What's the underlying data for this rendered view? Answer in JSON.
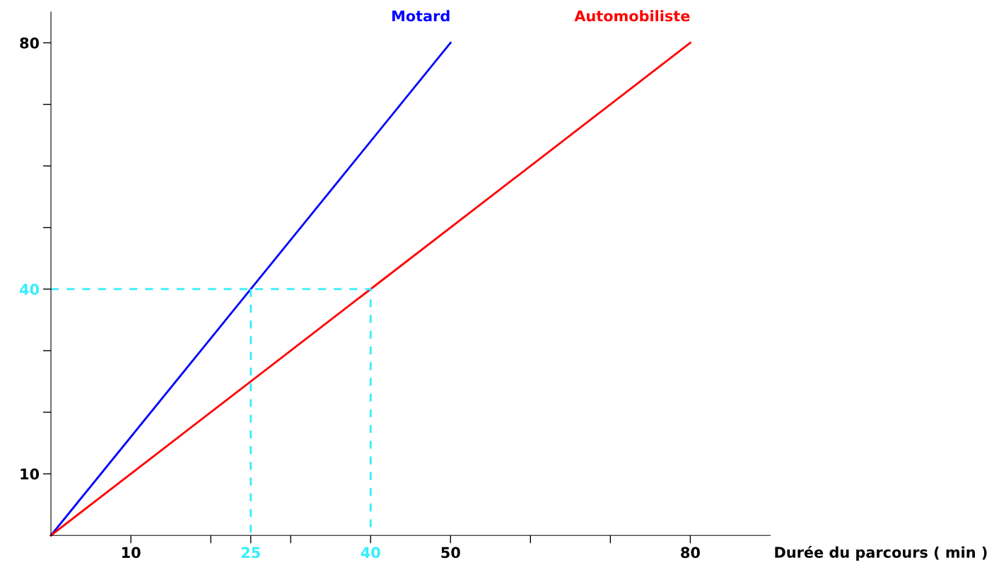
{
  "chart_data": {
    "type": "line",
    "xlabel": "Durée du parcours ( min )",
    "series": [
      {
        "name": "Motard",
        "color": "#0000ff",
        "x": [
          0,
          50
        ],
        "values": [
          0,
          80
        ]
      },
      {
        "name": "Automobiliste",
        "color": "#ff0000",
        "x": [
          0,
          80
        ],
        "values": [
          0,
          80
        ]
      },
      {
        "color": "#33eeff",
        "line_style": "dashed",
        "x": [
          0,
          40,
          40
        ],
        "values": [
          40,
          40,
          0
        ]
      },
      {
        "color": "#33eeff",
        "line_style": "dashed",
        "x": [
          25,
          25
        ],
        "values": [
          40,
          0
        ]
      }
    ],
    "xlim": [
      0,
      90
    ],
    "ylim": [
      0,
      85
    ],
    "xticks": [
      10,
      {
        "value": 20,
        "label": null
      },
      25,
      {
        "value": 30,
        "label": null
      },
      40,
      50,
      {
        "value": 60,
        "label": null
      },
      {
        "value": 70,
        "label": null
      },
      80
    ],
    "yticks": [
      10,
      {
        "value": 20,
        "label": null
      },
      {
        "value": 30,
        "label": null
      },
      40,
      {
        "value": 50,
        "label": null
      },
      {
        "value": 60,
        "label": null
      },
      {
        "value": 70,
        "label": null
      },
      80
    ],
    "grid": false,
    "legend": false
  }
}
